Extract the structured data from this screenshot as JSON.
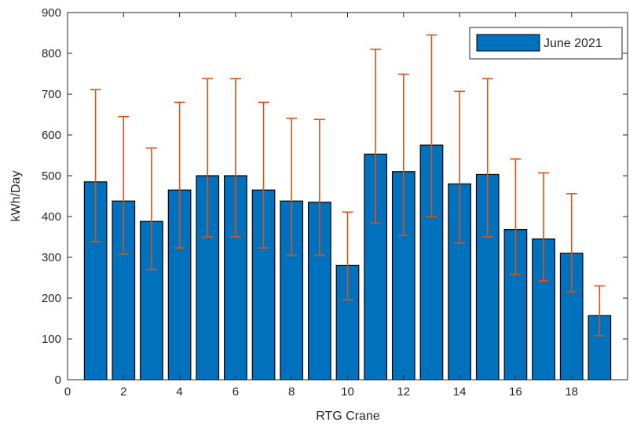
{
  "chart_data": {
    "type": "bar",
    "title": "",
    "xlabel": "RTG Crane",
    "ylabel": "kWh/Day",
    "xlim": [
      0,
      20
    ],
    "ylim": [
      0,
      900
    ],
    "x_ticks": [
      0,
      2,
      4,
      6,
      8,
      10,
      12,
      14,
      16,
      18
    ],
    "y_ticks": [
      0,
      100,
      200,
      300,
      400,
      500,
      600,
      700,
      800,
      900
    ],
    "grid": false,
    "legend_position": "top-right",
    "series": [
      {
        "name": "June 2021",
        "color": "#0072BD",
        "x": [
          1,
          2,
          3,
          4,
          5,
          6,
          7,
          8,
          9,
          10,
          11,
          12,
          13,
          14,
          15,
          16,
          17,
          18,
          19
        ],
        "values": [
          485,
          438,
          388,
          465,
          500,
          500,
          465,
          438,
          435,
          280,
          553,
          510,
          575,
          480,
          503,
          368,
          345,
          310,
          157
        ],
        "error_low": [
          338,
          308,
          270,
          323,
          350,
          350,
          323,
          305,
          305,
          196,
          384,
          354,
          400,
          335,
          350,
          258,
          243,
          215,
          108
        ],
        "error_high": [
          711,
          645,
          568,
          680,
          738,
          738,
          680,
          641,
          638,
          411,
          810,
          749,
          845,
          707,
          738,
          541,
          507,
          456,
          230
        ],
        "error_color": "#D95319"
      }
    ]
  }
}
